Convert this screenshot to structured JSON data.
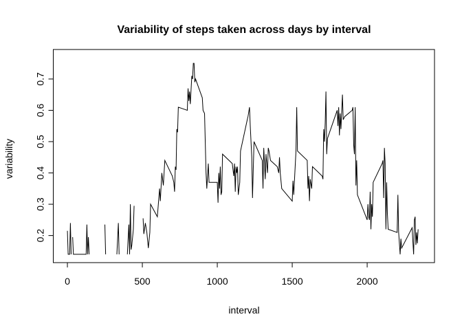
{
  "chart_data": {
    "type": "line",
    "title": "Variability of steps taken across days by interval",
    "x_label": "interval",
    "y_label": "variability",
    "x": [
      0,
      5,
      15,
      20,
      25,
      30,
      35,
      40,
      100,
      125,
      130,
      135,
      140,
      145,
      150,
      250,
      255,
      300,
      330,
      340,
      345,
      350,
      400,
      410,
      415,
      420,
      425,
      430,
      440,
      445,
      450,
      505,
      510,
      520,
      530,
      540,
      550,
      555,
      600,
      615,
      620,
      630,
      640,
      650,
      700,
      710,
      715,
      720,
      725,
      730,
      735,
      740,
      800,
      805,
      810,
      815,
      820,
      830,
      835,
      840,
      845,
      850,
      855,
      900,
      905,
      915,
      925,
      930,
      940,
      945,
      955,
      1000,
      1005,
      1010,
      1015,
      1020,
      1025,
      1030,
      1035,
      1100,
      1110,
      1115,
      1120,
      1125,
      1130,
      1135,
      1140,
      1145,
      1150,
      1155,
      1200,
      1205,
      1215,
      1220,
      1230,
      1235,
      1245,
      1300,
      1305,
      1310,
      1320,
      1325,
      1335,
      1340,
      1345,
      1355,
      1400,
      1410,
      1415,
      1420,
      1430,
      1500,
      1505,
      1510,
      1525,
      1530,
      1535,
      1600,
      1605,
      1610,
      1615,
      1620,
      1630,
      1635,
      1700,
      1705,
      1710,
      1715,
      1720,
      1725,
      1730,
      1735,
      1800,
      1805,
      1810,
      1815,
      1820,
      1825,
      1835,
      1840,
      1850,
      1900,
      1905,
      1910,
      1915,
      1920,
      1925,
      1930,
      1935,
      2000,
      2005,
      2010,
      2015,
      2020,
      2025,
      2030,
      2035,
      2040,
      2100,
      2105,
      2110,
      2115,
      2120,
      2125,
      2130,
      2135,
      2140,
      2200,
      2205,
      2210,
      2215,
      2220,
      2225,
      2230,
      2300,
      2305,
      2310,
      2315,
      2320,
      2325,
      2330,
      2335,
      2340
    ],
    "series": [
      {
        "name": "variability",
        "color": "#000000",
        "values": [
          0.215,
          0.14,
          0.14,
          0.24,
          0.14,
          null,
          0.195,
          0.14,
          0.14,
          0.14,
          0.235,
          0.14,
          0.195,
          0.14,
          null,
          0.235,
          0.14,
          null,
          0.14,
          0.24,
          0.14,
          null,
          0.14,
          0.235,
          0.14,
          0.3,
          0.155,
          0.17,
          0.22,
          0.295,
          null,
          0.255,
          0.205,
          0.24,
          0.21,
          0.16,
          0.21,
          0.3,
          0.26,
          0.35,
          0.31,
          0.4,
          0.36,
          0.44,
          0.39,
          0.37,
          0.34,
          0.42,
          0.41,
          0.54,
          0.53,
          0.61,
          0.6,
          0.67,
          0.63,
          0.66,
          0.62,
          0.71,
          0.7,
          0.75,
          0.75,
          0.69,
          0.7,
          0.64,
          0.6,
          0.59,
          0.4,
          0.35,
          0.43,
          0.37,
          0.37,
          0.37,
          0.305,
          0.4,
          0.35,
          0.42,
          0.33,
          0.34,
          0.46,
          0.43,
          0.39,
          0.43,
          0.34,
          0.42,
          0.4,
          0.42,
          0.33,
          0.35,
          0.37,
          0.47,
          0.57,
          0.58,
          0.61,
          0.55,
          0.45,
          0.32,
          0.5,
          0.44,
          0.35,
          0.48,
          0.38,
          0.46,
          0.4,
          0.48,
          0.47,
          0.44,
          0.42,
          0.4,
          0.45,
          0.4,
          0.35,
          0.31,
          0.375,
          0.33,
          0.47,
          0.61,
          0.47,
          0.44,
          0.35,
          0.39,
          0.31,
          0.38,
          0.35,
          0.42,
          0.39,
          0.38,
          0.54,
          0.5,
          0.56,
          0.66,
          0.46,
          0.51,
          0.6,
          0.55,
          0.61,
          0.52,
          0.59,
          0.54,
          0.65,
          0.57,
          0.58,
          0.6,
          0.61,
          0.49,
          0.46,
          0.61,
          0.36,
          0.44,
          0.33,
          0.25,
          0.3,
          0.26,
          0.25,
          0.34,
          0.22,
          0.3,
          0.26,
          0.37,
          0.43,
          0.44,
          0.32,
          0.48,
          0.43,
          0.22,
          0.37,
          0.27,
          0.22,
          0.21,
          0.33,
          0.21,
          0.175,
          0.14,
          0.19,
          0.16,
          0.225,
          0.18,
          0.14,
          0.25,
          0.26,
          0.17,
          0.21,
          0.175,
          0.22
        ]
      }
    ],
    "xlim": [
      -94.2,
      2449.2
    ],
    "ylim": [
      0.1135,
      0.7745
    ],
    "xticks": [
      0,
      500,
      1000,
      1500,
      2000
    ],
    "yticks": [
      0.2,
      0.3,
      0.4,
      0.5,
      0.6,
      0.7
    ]
  }
}
